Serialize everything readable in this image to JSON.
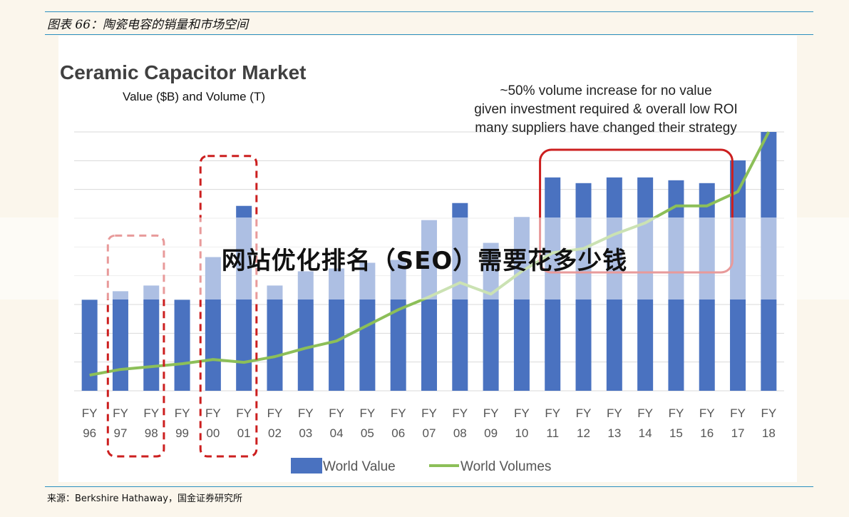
{
  "caption": "图表 66：陶瓷电容的销量和市场空间",
  "source_note": "来源：Berkshire Hathaway，国金证券研究所",
  "overlay_text": "网站优化排名（SEO）需要花多少钱",
  "colors": {
    "bar": "#4a72c0",
    "line": "#8cbf58",
    "highlight_dashed": "#cc1f1f",
    "highlight_solid": "#cc1f1f",
    "grid": "#d9d9d9",
    "rule": "#2a8fc0"
  },
  "chart_data": {
    "type": "bar",
    "title": "Ceramic Capacitor Market",
    "subtitle": "Value ($B) and Volume (T)",
    "annotation": [
      "~50% volume increase for no value",
      "given investment required & overall low ROI",
      "many suppliers have changed their strategy"
    ],
    "categories": [
      "FY 96",
      "FY 97",
      "FY 98",
      "FY 99",
      "FY 00",
      "FY 01",
      "FY 02",
      "FY 03",
      "FY 04",
      "FY 05",
      "FY 06",
      "FY 07",
      "FY 08",
      "FY 09",
      "FY 10",
      "FY 11",
      "FY 12",
      "FY 13",
      "FY 14",
      "FY 15",
      "FY 16",
      "FY 17",
      "FY 18"
    ],
    "series": [
      {
        "name": "World Value",
        "kind": "bar",
        "values": [
          3.2,
          3.5,
          3.7,
          3.2,
          4.7,
          6.5,
          3.7,
          4.2,
          4.3,
          4.5,
          4.6,
          6.0,
          6.6,
          5.2,
          6.1,
          7.5,
          7.3,
          7.5,
          7.5,
          7.4,
          7.3,
          8.1,
          9.1
        ]
      },
      {
        "name": "World Volumes",
        "kind": "line",
        "values": [
          0.55,
          0.75,
          0.85,
          0.95,
          1.1,
          1.0,
          1.2,
          1.5,
          1.75,
          2.3,
          2.85,
          3.3,
          3.8,
          3.4,
          4.2,
          4.85,
          5.0,
          5.5,
          5.9,
          6.5,
          6.5,
          7.0,
          9.1
        ]
      }
    ],
    "legend_position": "bottom-center",
    "grid": true,
    "ylim": [
      0,
      9.1
    ],
    "highlights": [
      {
        "style": "dashed",
        "categories": [
          "FY 97",
          "FY 98"
        ]
      },
      {
        "style": "dashed",
        "categories": [
          "FY 00",
          "FY 01"
        ]
      },
      {
        "style": "solid",
        "categories": [
          "FY 11",
          "FY 16"
        ]
      }
    ]
  }
}
